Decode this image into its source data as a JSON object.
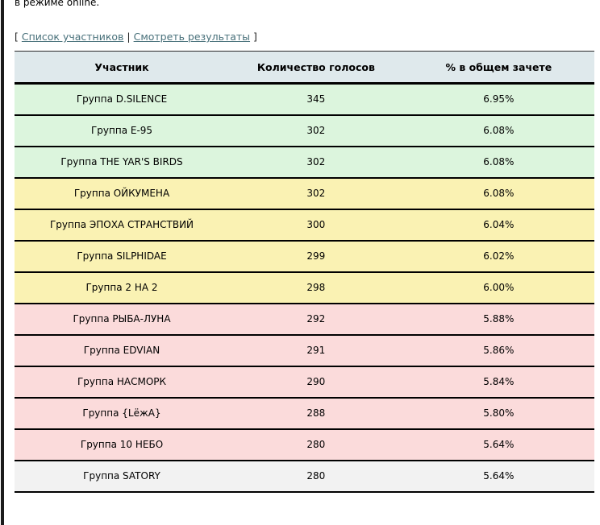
{
  "page": {
    "intro_text": "в режиме online.",
    "nav": {
      "open_bracket": "[",
      "close_bracket": "]",
      "separator": "|",
      "links": [
        {
          "label": "Список участников"
        },
        {
          "label": "Смотреть результаты"
        }
      ]
    }
  },
  "table": {
    "headers": {
      "participant": "Участник",
      "votes": "Количество голосов",
      "percent": "% в общем зачете"
    },
    "colors": {
      "header_bg": "#dfe9ec",
      "green": "#dcf5dd",
      "yellow": "#faf2b3",
      "pink": "#fbdbdb",
      "grey": "#f2f2f2",
      "border": "#000000",
      "link": "#48707a"
    },
    "rows": [
      {
        "participant": "Группа D.SILENCE",
        "votes": "345",
        "percent": "6.95%",
        "tier": "green"
      },
      {
        "participant": "Группа E-95",
        "votes": "302",
        "percent": "6.08%",
        "tier": "green"
      },
      {
        "participant": "Группа THE YAR'S BIRDS",
        "votes": "302",
        "percent": "6.08%",
        "tier": "green"
      },
      {
        "participant": "Группа ОЙКУМЕНА",
        "votes": "302",
        "percent": "6.08%",
        "tier": "yellow"
      },
      {
        "participant": "Группа ЭПОХА СТРАНСТВИЙ",
        "votes": "300",
        "percent": "6.04%",
        "tier": "yellow"
      },
      {
        "participant": "Группа SILPHIDAE",
        "votes": "299",
        "percent": "6.02%",
        "tier": "yellow"
      },
      {
        "participant": "Группа 2 НА 2",
        "votes": "298",
        "percent": "6.00%",
        "tier": "yellow"
      },
      {
        "participant": "Группа РЫБА-ЛУНА",
        "votes": "292",
        "percent": "5.88%",
        "tier": "pink"
      },
      {
        "participant": "Группа EDVIAN",
        "votes": "291",
        "percent": "5.86%",
        "tier": "pink"
      },
      {
        "participant": "Группа НАСМОРК",
        "votes": "290",
        "percent": "5.84%",
        "tier": "pink"
      },
      {
        "participant": "Группа {LёжA}",
        "votes": "288",
        "percent": "5.80%",
        "tier": "pink"
      },
      {
        "participant": "Группа 10 НЕБО",
        "votes": "280",
        "percent": "5.64%",
        "tier": "pink"
      },
      {
        "participant": "Группа SATORY",
        "votes": "280",
        "percent": "5.64%",
        "tier": "grey"
      }
    ]
  }
}
